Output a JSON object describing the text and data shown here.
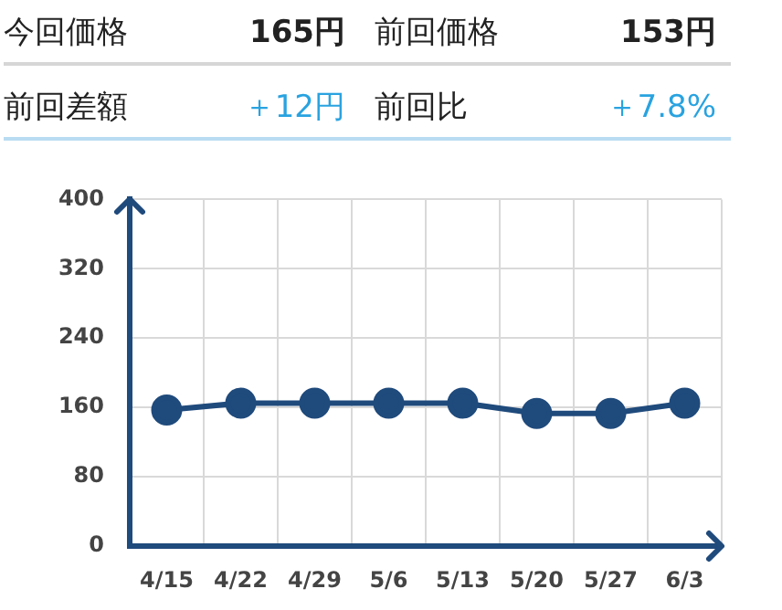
{
  "chart_data": {
    "type": "line",
    "annotations": [
      "今回価格",
      "165円",
      "前回価格",
      "153円",
      "前回差額",
      "＋12円",
      "前回比",
      "＋7.8%"
    ],
    "categories": [
      "4/15",
      "4/22",
      "4/29",
      "5/6",
      "5/13",
      "5/20",
      "5/27",
      "6/3"
    ],
    "series": [
      {
        "color": "#1f4a7c",
        "values": [
          157,
          165,
          165,
          165,
          165,
          153,
          153,
          165
        ]
      }
    ],
    "ylim": [
      0,
      400
    ],
    "yticks": [
      0,
      80,
      160,
      240,
      320,
      400
    ],
    "grid": true,
    "marker": "circle"
  }
}
